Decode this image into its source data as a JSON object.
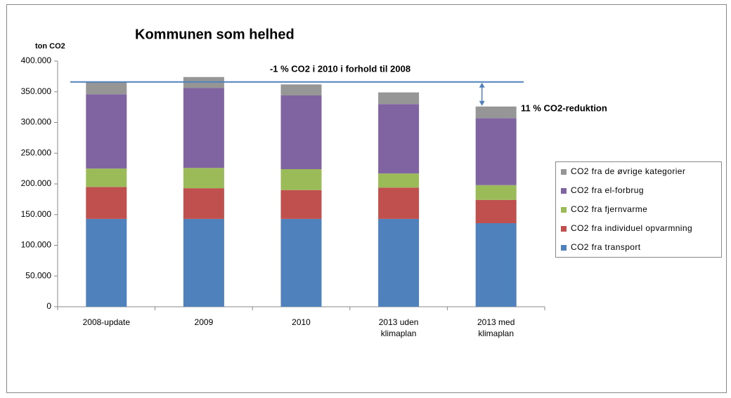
{
  "chart_data": {
    "type": "stacked_bar",
    "title": "Kommunen som helhed",
    "y_label": "ton CO2",
    "categories": [
      "2008-update",
      "2009",
      "2010",
      "2013 uden\nklimaplan",
      "2013 med\nklimaplan"
    ],
    "series": [
      {
        "name": "CO2 fra transport",
        "color": "#4f81bd",
        "values": [
          143000,
          143000,
          143000,
          143000,
          136000
        ]
      },
      {
        "name": "CO2 fra individuel opvarmning",
        "color": "#c0504d",
        "values": [
          52000,
          50000,
          47000,
          51000,
          38000
        ]
      },
      {
        "name": "CO2 fra fjernvarme",
        "color": "#9bbb59",
        "values": [
          30000,
          33000,
          34000,
          23000,
          24000
        ]
      },
      {
        "name": "CO2 fra el-forbrug",
        "color": "#8064a2",
        "values": [
          121000,
          130000,
          120000,
          113000,
          109000
        ]
      },
      {
        "name": "CO2 fra de øvrige kategorier",
        "color": "#969696",
        "values": [
          20000,
          18000,
          18000,
          19000,
          19000
        ]
      }
    ],
    "ylim": [
      0,
      400000
    ],
    "yticks": [
      0,
      {
        "value": 50000,
        "label": "50.000"
      },
      {
        "value": 100000,
        "label": "100.000"
      },
      {
        "value": 150000,
        "label": "150.000"
      },
      {
        "value": 200000,
        "label": "200.000"
      },
      {
        "value": 250000,
        "label": "250.000"
      },
      {
        "value": 300000,
        "label": "300.000"
      },
      {
        "value": 350000,
        "label": "350.000"
      },
      {
        "value": 400000,
        "label": "400.000"
      }
    ],
    "reference_line": {
      "value": 366000,
      "color": "#4f81bd"
    },
    "annotations": [
      "-1 % CO2 i 2010 i forhold til 2008",
      "11 % CO2-reduktion"
    ],
    "grid": false,
    "legend": "right"
  }
}
